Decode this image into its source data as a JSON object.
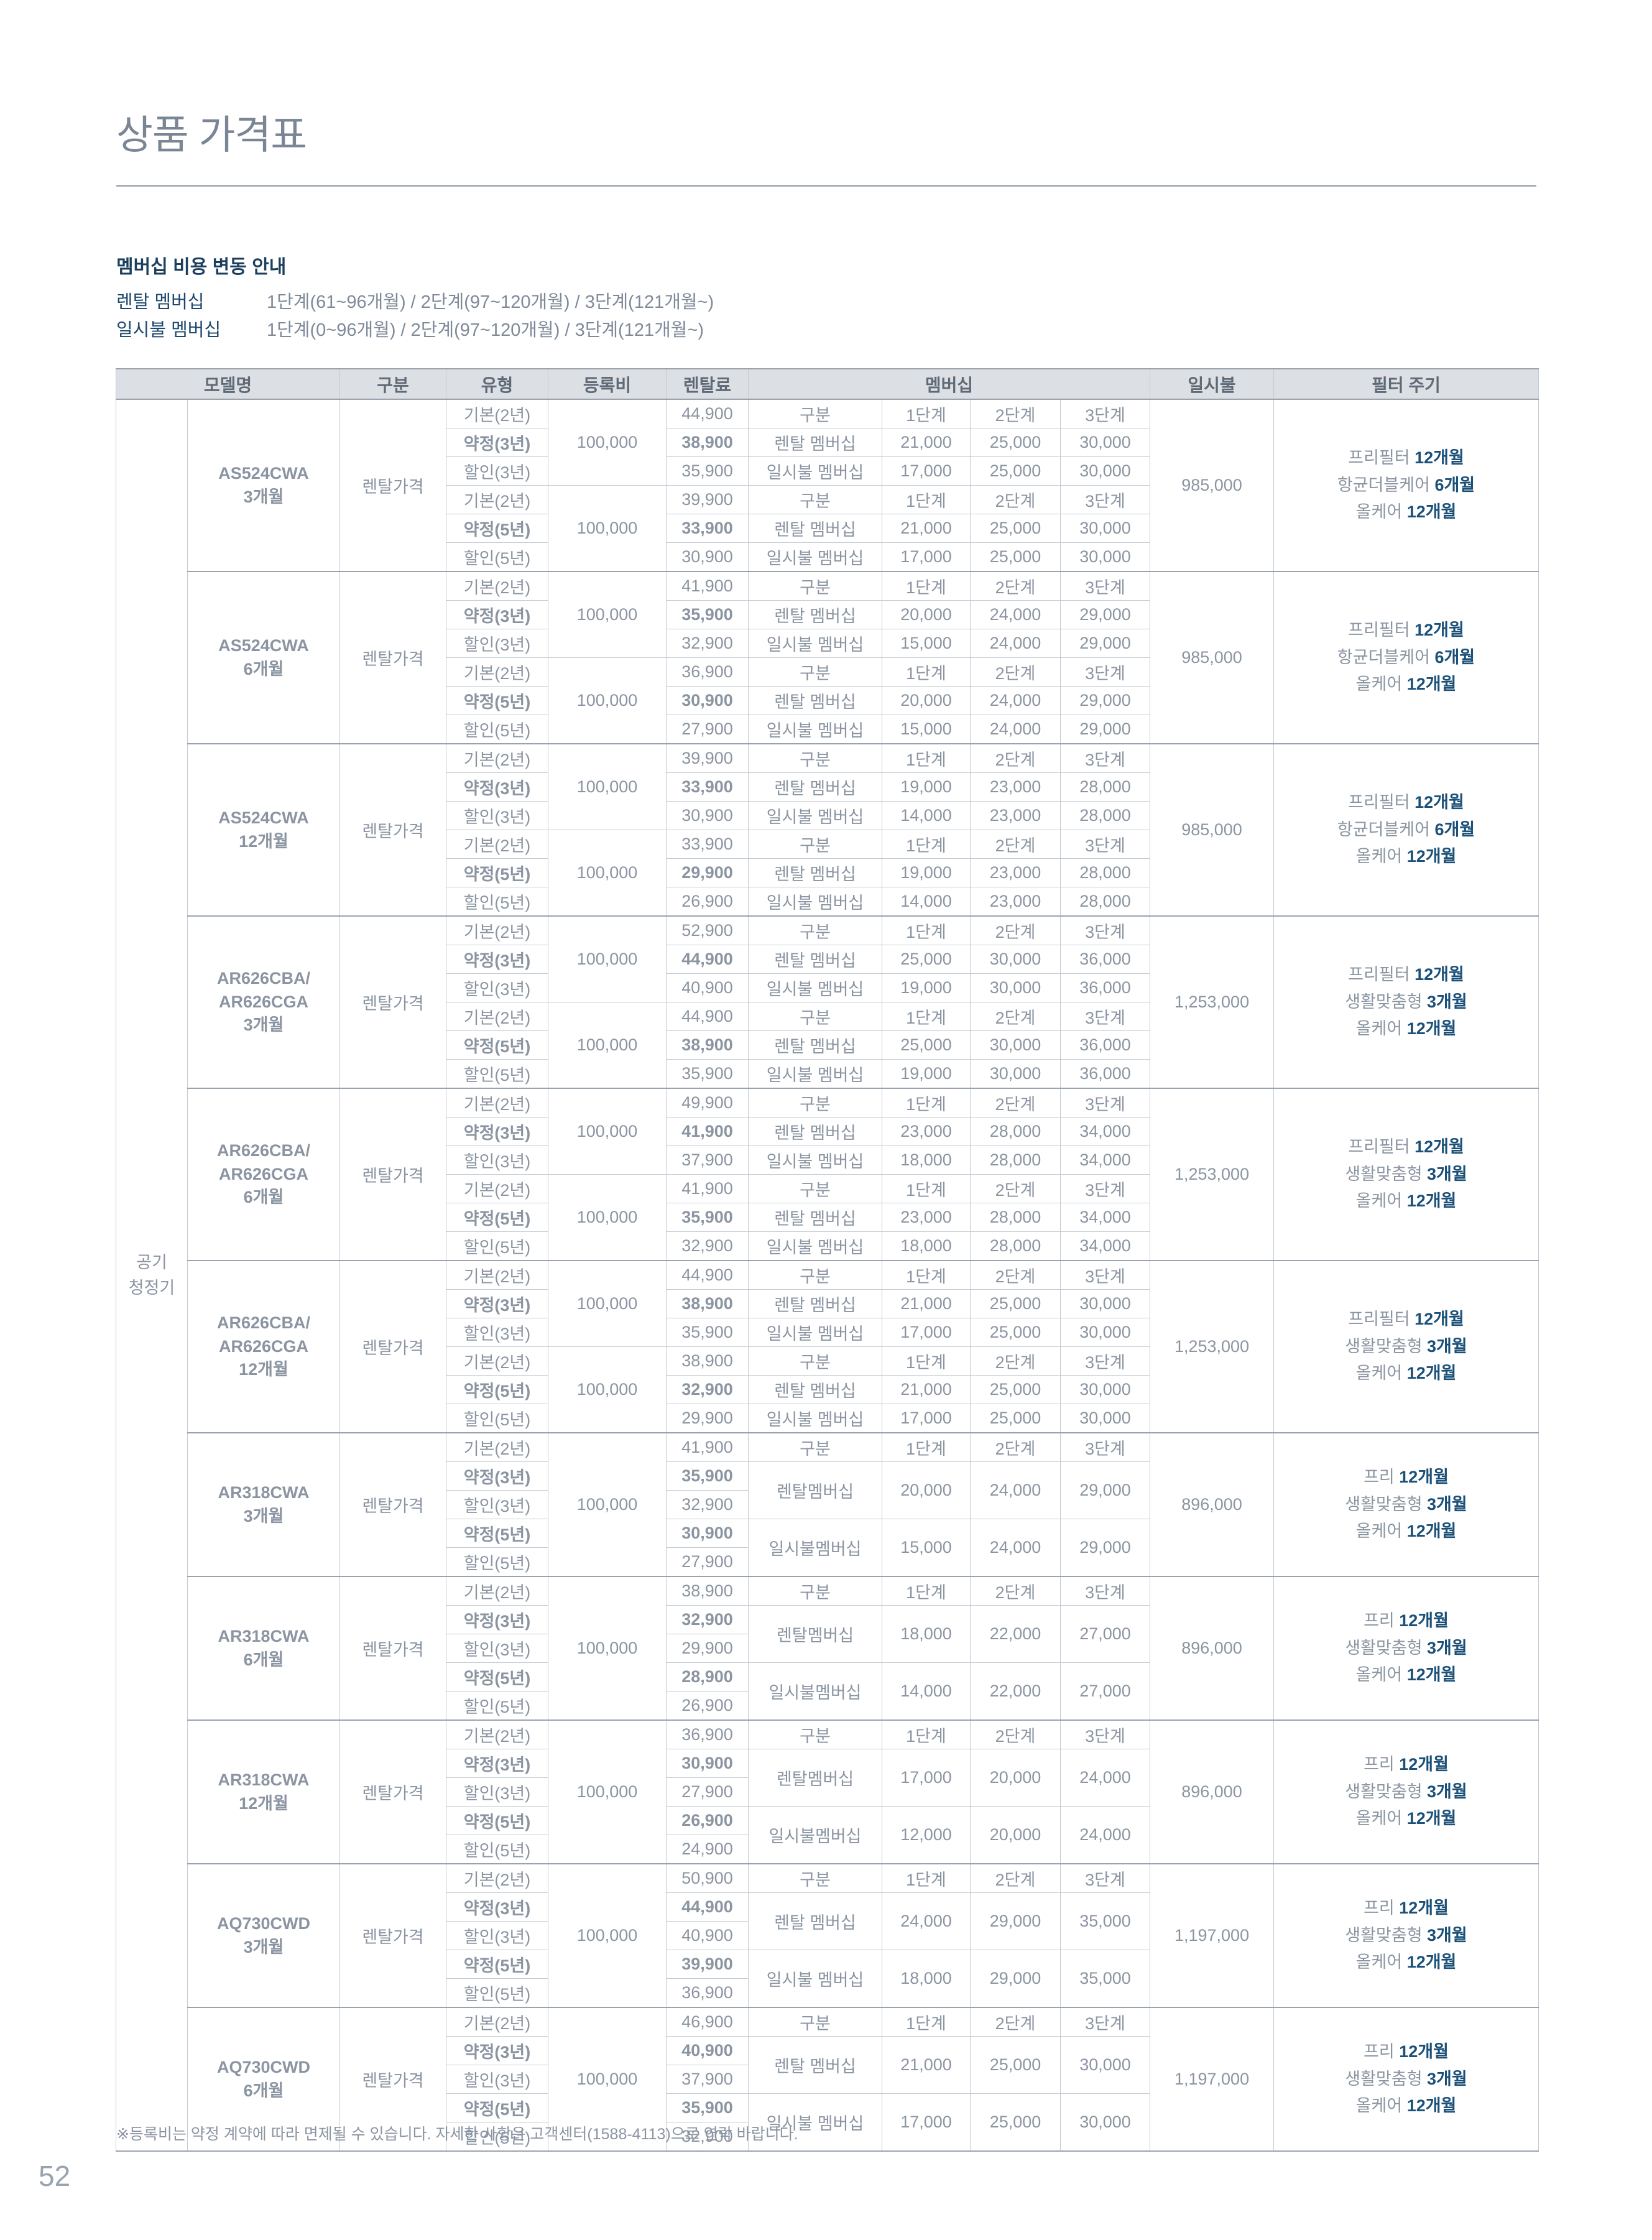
{
  "page": {
    "title": "상품 가격표",
    "page_number": "52",
    "footnote": "※등록비는 약정 계약에 따라 면제될 수 있습니다. 자세한 사항은 고객센터(1588-4113)으로 연락 바랍니다."
  },
  "membership_notice": {
    "heading": "멤버십 비용 변동 안내",
    "rows": [
      {
        "label": "렌탈 멤버십",
        "value": "1단계(61~96개월) / 2단계(97~120개월) / 3단계(121개월~)"
      },
      {
        "label": "일시불 멤버십",
        "value": "1단계(0~96개월) / 2단계(97~120개월) / 3단계(121개월~)"
      }
    ]
  },
  "colors": {
    "navy_accent": "#1b5078",
    "gray_text": "#8b95a2",
    "header_bg": "#dcdfe4",
    "cell_blue_bg": "#e9f0f8",
    "membership_label_bg": "#e3ecf7",
    "border": "#c3cbd3",
    "border_dark": "#99a3ae",
    "title_gray": "#7b8695"
  },
  "table": {
    "headers": [
      "모델명",
      "구분",
      "유형",
      "등록비",
      "렌탈료",
      "멤버십",
      "일시불",
      "필터 주기"
    ],
    "category_lines": [
      "공기",
      "청정기"
    ],
    "membership_subheaders": [
      "구분",
      "1단계",
      "2단계",
      "3단계"
    ],
    "blocks": [
      {
        "model_lines": [
          "AS524CWA",
          "3개월"
        ],
        "gubun": "렌탈가격",
        "layout": "six",
        "subs": [
          {
            "reg": "100,000",
            "rows": [
              {
                "type": "기본(2년)",
                "fee": "44,900",
                "emph": false
              },
              {
                "type": "약정(3년)",
                "fee": "38,900",
                "emph": true
              },
              {
                "type": "할인(3년)",
                "fee": "35,900",
                "emph": false
              }
            ]
          },
          {
            "reg": "100,000",
            "rows": [
              {
                "type": "기본(2년)",
                "fee": "39,900",
                "emph": false
              },
              {
                "type": "약정(5년)",
                "fee": "33,900",
                "emph": true
              },
              {
                "type": "할인(5년)",
                "fee": "30,900",
                "emph": false
              }
            ]
          }
        ],
        "mem": {
          "rental_label": "렌탈 멤버십",
          "rental": [
            "21,000",
            "25,000",
            "30,000"
          ],
          "lump_label": "일시불 멤버십",
          "lump": [
            "17,000",
            "25,000",
            "30,000"
          ]
        },
        "lump_sum": "985,000",
        "filter": [
          [
            "프리필터",
            "12개월"
          ],
          [
            "항균더블케어",
            "6개월"
          ],
          [
            "올케어",
            "12개월"
          ]
        ]
      },
      {
        "model_lines": [
          "AS524CWA",
          "6개월"
        ],
        "gubun": "렌탈가격",
        "layout": "six",
        "subs": [
          {
            "reg": "100,000",
            "rows": [
              {
                "type": "기본(2년)",
                "fee": "41,900",
                "emph": false
              },
              {
                "type": "약정(3년)",
                "fee": "35,900",
                "emph": true
              },
              {
                "type": "할인(3년)",
                "fee": "32,900",
                "emph": false
              }
            ]
          },
          {
            "reg": "100,000",
            "rows": [
              {
                "type": "기본(2년)",
                "fee": "36,900",
                "emph": false
              },
              {
                "type": "약정(5년)",
                "fee": "30,900",
                "emph": true
              },
              {
                "type": "할인(5년)",
                "fee": "27,900",
                "emph": false
              }
            ]
          }
        ],
        "mem": {
          "rental_label": "렌탈 멤버십",
          "rental": [
            "20,000",
            "24,000",
            "29,000"
          ],
          "lump_label": "일시불 멤버십",
          "lump": [
            "15,000",
            "24,000",
            "29,000"
          ]
        },
        "lump_sum": "985,000",
        "filter": [
          [
            "프리필터",
            "12개월"
          ],
          [
            "항균더블케어",
            "6개월"
          ],
          [
            "올케어",
            "12개월"
          ]
        ]
      },
      {
        "model_lines": [
          "AS524CWA",
          "12개월"
        ],
        "gubun": "렌탈가격",
        "layout": "six",
        "subs": [
          {
            "reg": "100,000",
            "rows": [
              {
                "type": "기본(2년)",
                "fee": "39,900",
                "emph": false
              },
              {
                "type": "약정(3년)",
                "fee": "33,900",
                "emph": true
              },
              {
                "type": "할인(3년)",
                "fee": "30,900",
                "emph": false
              }
            ]
          },
          {
            "reg": "100,000",
            "rows": [
              {
                "type": "기본(2년)",
                "fee": "33,900",
                "emph": false
              },
              {
                "type": "약정(5년)",
                "fee": "29,900",
                "emph": true
              },
              {
                "type": "할인(5년)",
                "fee": "26,900",
                "emph": false
              }
            ]
          }
        ],
        "mem": {
          "rental_label": "렌탈 멤버십",
          "rental": [
            "19,000",
            "23,000",
            "28,000"
          ],
          "lump_label": "일시불 멤버십",
          "lump": [
            "14,000",
            "23,000",
            "28,000"
          ]
        },
        "lump_sum": "985,000",
        "filter": [
          [
            "프리필터",
            "12개월"
          ],
          [
            "항균더블케어",
            "6개월"
          ],
          [
            "올케어",
            "12개월"
          ]
        ]
      },
      {
        "model_lines": [
          "AR626CBA/",
          "AR626CGA",
          "3개월"
        ],
        "gubun": "렌탈가격",
        "layout": "six",
        "subs": [
          {
            "reg": "100,000",
            "rows": [
              {
                "type": "기본(2년)",
                "fee": "52,900",
                "emph": false
              },
              {
                "type": "약정(3년)",
                "fee": "44,900",
                "emph": true
              },
              {
                "type": "할인(3년)",
                "fee": "40,900",
                "emph": false
              }
            ]
          },
          {
            "reg": "100,000",
            "rows": [
              {
                "type": "기본(2년)",
                "fee": "44,900",
                "emph": false
              },
              {
                "type": "약정(5년)",
                "fee": "38,900",
                "emph": true
              },
              {
                "type": "할인(5년)",
                "fee": "35,900",
                "emph": false
              }
            ]
          }
        ],
        "mem": {
          "rental_label": "렌탈 멤버십",
          "rental": [
            "25,000",
            "30,000",
            "36,000"
          ],
          "lump_label": "일시불 멤버십",
          "lump": [
            "19,000",
            "30,000",
            "36,000"
          ]
        },
        "lump_sum": "1,253,000",
        "filter": [
          [
            "프리필터",
            "12개월"
          ],
          [
            "생활맞춤형",
            "3개월"
          ],
          [
            "올케어",
            "12개월"
          ]
        ]
      },
      {
        "model_lines": [
          "AR626CBA/",
          "AR626CGA",
          "6개월"
        ],
        "gubun": "렌탈가격",
        "layout": "six",
        "subs": [
          {
            "reg": "100,000",
            "rows": [
              {
                "type": "기본(2년)",
                "fee": "49,900",
                "emph": false
              },
              {
                "type": "약정(3년)",
                "fee": "41,900",
                "emph": true
              },
              {
                "type": "할인(3년)",
                "fee": "37,900",
                "emph": false
              }
            ]
          },
          {
            "reg": "100,000",
            "rows": [
              {
                "type": "기본(2년)",
                "fee": "41,900",
                "emph": false
              },
              {
                "type": "약정(5년)",
                "fee": "35,900",
                "emph": true
              },
              {
                "type": "할인(5년)",
                "fee": "32,900",
                "emph": false
              }
            ]
          }
        ],
        "mem": {
          "rental_label": "렌탈 멤버십",
          "rental": [
            "23,000",
            "28,000",
            "34,000"
          ],
          "lump_label": "일시불 멤버십",
          "lump": [
            "18,000",
            "28,000",
            "34,000"
          ]
        },
        "lump_sum": "1,253,000",
        "filter": [
          [
            "프리필터",
            "12개월"
          ],
          [
            "생활맞춤형",
            "3개월"
          ],
          [
            "올케어",
            "12개월"
          ]
        ]
      },
      {
        "model_lines": [
          "AR626CBA/",
          "AR626CGA",
          "12개월"
        ],
        "gubun": "렌탈가격",
        "layout": "six",
        "subs": [
          {
            "reg": "100,000",
            "rows": [
              {
                "type": "기본(2년)",
                "fee": "44,900",
                "emph": false
              },
              {
                "type": "약정(3년)",
                "fee": "38,900",
                "emph": true
              },
              {
                "type": "할인(3년)",
                "fee": "35,900",
                "emph": false
              }
            ]
          },
          {
            "reg": "100,000",
            "rows": [
              {
                "type": "기본(2년)",
                "fee": "38,900",
                "emph": false
              },
              {
                "type": "약정(5년)",
                "fee": "32,900",
                "emph": true
              },
              {
                "type": "할인(5년)",
                "fee": "29,900",
                "emph": false
              }
            ]
          }
        ],
        "mem": {
          "rental_label": "렌탈 멤버십",
          "rental": [
            "21,000",
            "25,000",
            "30,000"
          ],
          "lump_label": "일시불 멤버십",
          "lump": [
            "17,000",
            "25,000",
            "30,000"
          ]
        },
        "lump_sum": "1,253,000",
        "filter": [
          [
            "프리필터",
            "12개월"
          ],
          [
            "생활맞춤형",
            "3개월"
          ],
          [
            "올케어",
            "12개월"
          ]
        ]
      },
      {
        "model_lines": [
          "AR318CWA",
          "3개월"
        ],
        "gubun": "렌탈가격",
        "layout": "five",
        "reg": "100,000",
        "rows": [
          {
            "type": "기본(2년)",
            "fee": "41,900",
            "emph": false
          },
          {
            "type": "약정(3년)",
            "fee": "35,900",
            "emph": true
          },
          {
            "type": "할인(3년)",
            "fee": "32,900",
            "emph": false
          },
          {
            "type": "약정(5년)",
            "fee": "30,900",
            "emph": true
          },
          {
            "type": "할인(5년)",
            "fee": "27,900",
            "emph": false
          }
        ],
        "mem": {
          "rental_label": "렌탈멤버십",
          "rental": [
            "20,000",
            "24,000",
            "29,000"
          ],
          "lump_label": "일시불멤버십",
          "lump": [
            "15,000",
            "24,000",
            "29,000"
          ]
        },
        "lump_sum": "896,000",
        "filter": [
          [
            "프리",
            "12개월"
          ],
          [
            "생활맞춤형",
            "3개월"
          ],
          [
            "올케어",
            "12개월"
          ]
        ]
      },
      {
        "model_lines": [
          "AR318CWA",
          "6개월"
        ],
        "gubun": "렌탈가격",
        "layout": "five",
        "reg": "100,000",
        "rows": [
          {
            "type": "기본(2년)",
            "fee": "38,900",
            "emph": false
          },
          {
            "type": "약정(3년)",
            "fee": "32,900",
            "emph": true
          },
          {
            "type": "할인(3년)",
            "fee": "29,900",
            "emph": false
          },
          {
            "type": "약정(5년)",
            "fee": "28,900",
            "emph": true
          },
          {
            "type": "할인(5년)",
            "fee": "26,900",
            "emph": false
          }
        ],
        "mem": {
          "rental_label": "렌탈멤버십",
          "rental": [
            "18,000",
            "22,000",
            "27,000"
          ],
          "lump_label": "일시불멤버십",
          "lump": [
            "14,000",
            "22,000",
            "27,000"
          ]
        },
        "lump_sum": "896,000",
        "filter": [
          [
            "프리",
            "12개월"
          ],
          [
            "생활맞춤형",
            "3개월"
          ],
          [
            "올케어",
            "12개월"
          ]
        ]
      },
      {
        "model_lines": [
          "AR318CWA",
          "12개월"
        ],
        "gubun": "렌탈가격",
        "layout": "five",
        "reg": "100,000",
        "rows": [
          {
            "type": "기본(2년)",
            "fee": "36,900",
            "emph": false
          },
          {
            "type": "약정(3년)",
            "fee": "30,900",
            "emph": true
          },
          {
            "type": "할인(3년)",
            "fee": "27,900",
            "emph": false
          },
          {
            "type": "약정(5년)",
            "fee": "26,900",
            "emph": true
          },
          {
            "type": "할인(5년)",
            "fee": "24,900",
            "emph": false
          }
        ],
        "mem": {
          "rental_label": "렌탈멤버십",
          "rental": [
            "17,000",
            "20,000",
            "24,000"
          ],
          "lump_label": "일시불멤버십",
          "lump": [
            "12,000",
            "20,000",
            "24,000"
          ]
        },
        "lump_sum": "896,000",
        "filter": [
          [
            "프리",
            "12개월"
          ],
          [
            "생활맞춤형",
            "3개월"
          ],
          [
            "올케어",
            "12개월"
          ]
        ]
      },
      {
        "model_lines": [
          "AQ730CWD",
          "3개월"
        ],
        "gubun": "렌탈가격",
        "layout": "five",
        "reg": "100,000",
        "rows": [
          {
            "type": "기본(2년)",
            "fee": "50,900",
            "emph": false
          },
          {
            "type": "약정(3년)",
            "fee": "44,900",
            "emph": true
          },
          {
            "type": "할인(3년)",
            "fee": "40,900",
            "emph": false
          },
          {
            "type": "약정(5년)",
            "fee": "39,900",
            "emph": true
          },
          {
            "type": "할인(5년)",
            "fee": "36,900",
            "emph": false
          }
        ],
        "mem": {
          "rental_label": "렌탈 멤버십",
          "rental": [
            "24,000",
            "29,000",
            "35,000"
          ],
          "lump_label": "일시불 멤버십",
          "lump": [
            "18,000",
            "29,000",
            "35,000"
          ]
        },
        "lump_sum": "1,197,000",
        "filter": [
          [
            "프리",
            "12개월"
          ],
          [
            "생활맞춤형",
            "3개월"
          ],
          [
            "올케어",
            "12개월"
          ]
        ]
      },
      {
        "model_lines": [
          "AQ730CWD",
          "6개월"
        ],
        "gubun": "렌탈가격",
        "layout": "five",
        "reg": "100,000",
        "rows": [
          {
            "type": "기본(2년)",
            "fee": "46,900",
            "emph": false
          },
          {
            "type": "약정(3년)",
            "fee": "40,900",
            "emph": true
          },
          {
            "type": "할인(3년)",
            "fee": "37,900",
            "emph": false
          },
          {
            "type": "약정(5년)",
            "fee": "35,900",
            "emph": true
          },
          {
            "type": "할인(5년)",
            "fee": "32,900",
            "emph": false
          }
        ],
        "mem": {
          "rental_label": "렌탈 멤버십",
          "rental": [
            "21,000",
            "25,000",
            "30,000"
          ],
          "lump_label": "일시불 멤버십",
          "lump": [
            "17,000",
            "25,000",
            "30,000"
          ]
        },
        "lump_sum": "1,197,000",
        "filter": [
          [
            "프리",
            "12개월"
          ],
          [
            "생활맞춤형",
            "3개월"
          ],
          [
            "올케어",
            "12개월"
          ]
        ]
      }
    ]
  }
}
